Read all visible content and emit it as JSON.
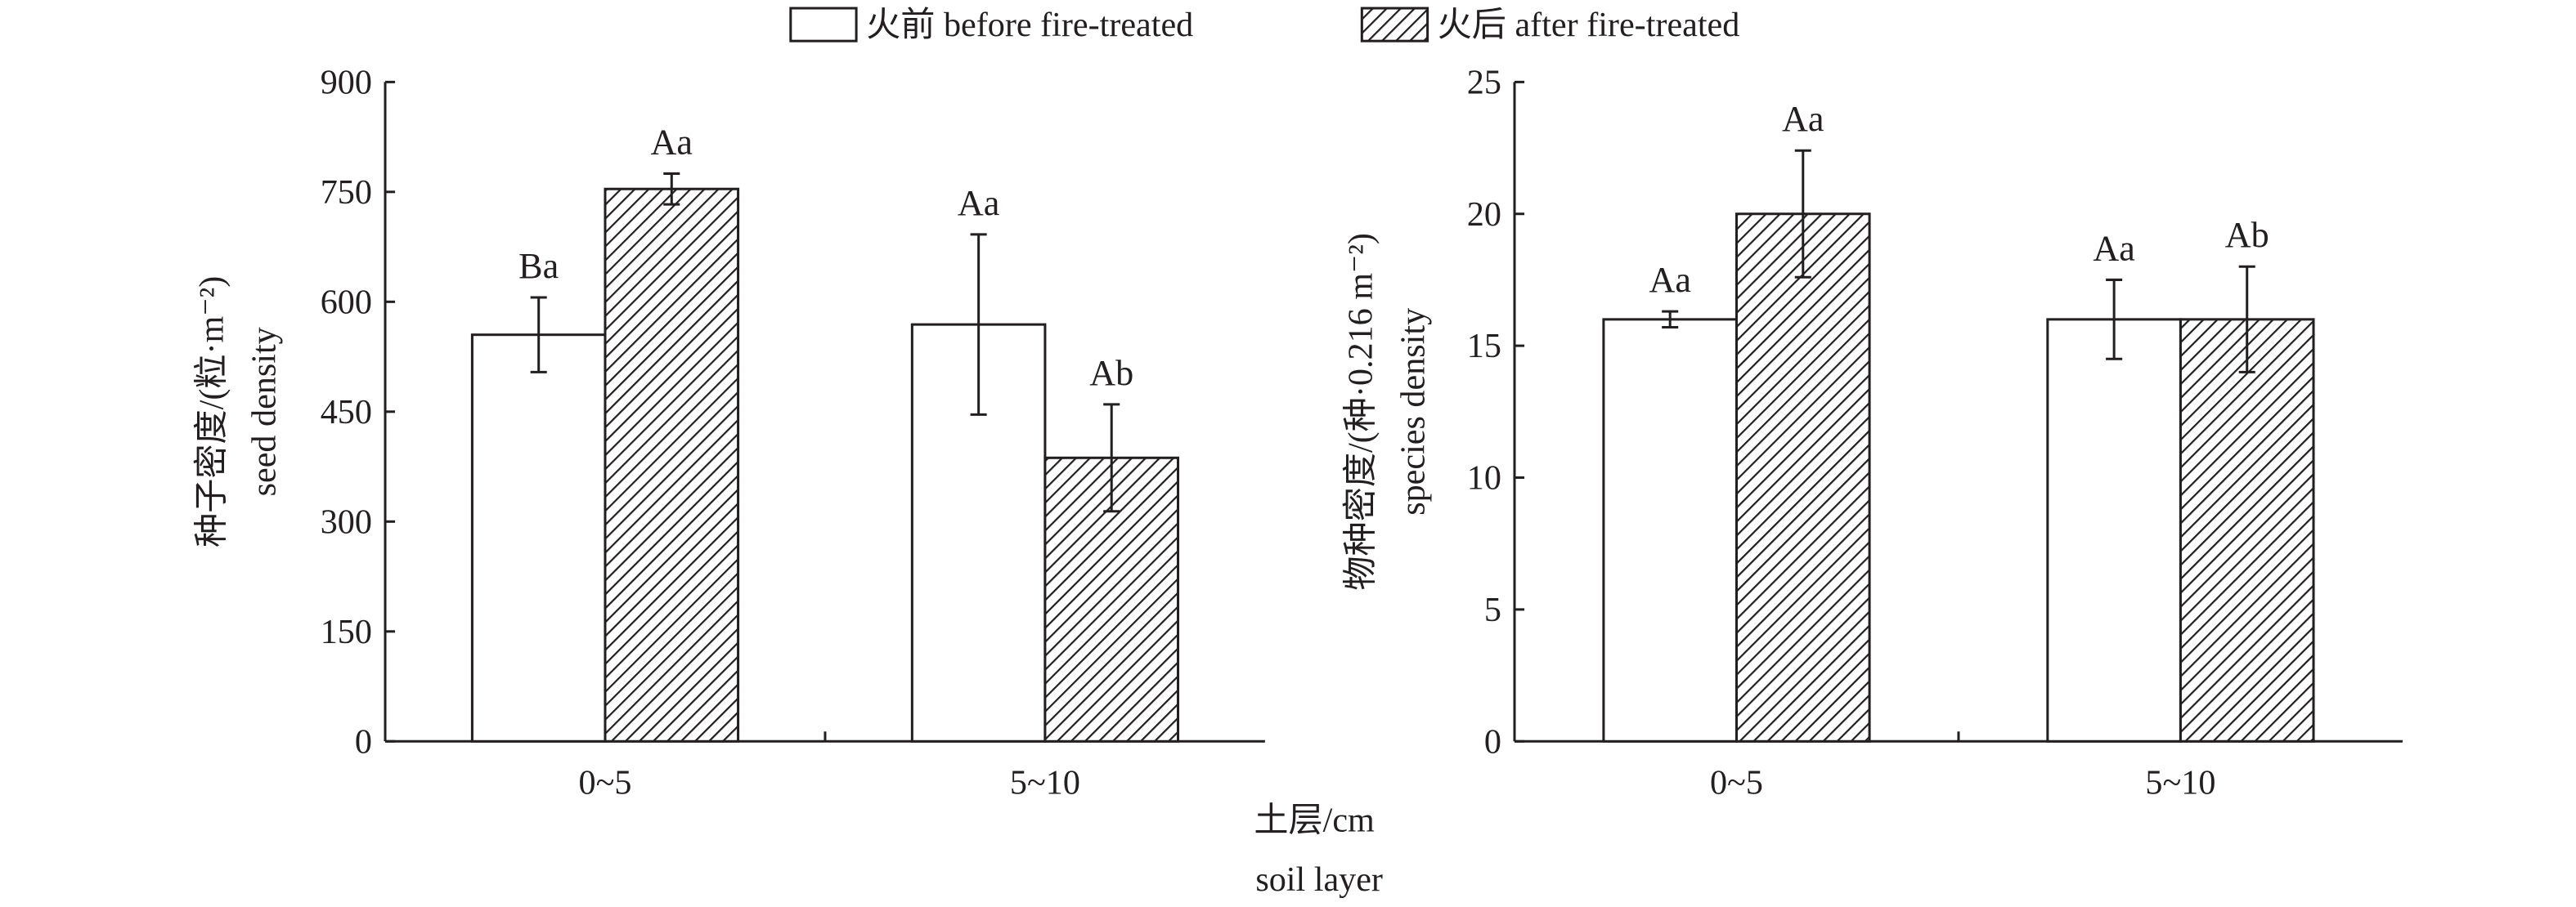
{
  "legend": {
    "before": "火前 before fire-treated",
    "after": "火后 after fire-treated"
  },
  "shared_xlabel": {
    "line1": "土层/cm",
    "line2": "soil layer"
  },
  "chart_data": [
    {
      "type": "bar",
      "categories": [
        "0~5",
        "5~10"
      ],
      "ylabel_line1": "种子密度/(粒·m⁻²)",
      "ylabel_line2": "seed density",
      "ylim": [
        0,
        900
      ],
      "yticks": [
        0,
        150,
        300,
        450,
        600,
        750,
        900
      ],
      "grid": false,
      "legend_position": "top-center",
      "series": [
        {
          "name": "火前 before fire-treated",
          "pattern": "open",
          "values": [
            555,
            569
          ],
          "errors": [
            51,
            123
          ],
          "labels": [
            "Ba",
            "Aa"
          ]
        },
        {
          "name": "火后 after fire-treated",
          "pattern": "hatched",
          "values": [
            754,
            387
          ],
          "errors": [
            21,
            73
          ],
          "labels": [
            "Aa",
            "Ab"
          ]
        }
      ]
    },
    {
      "type": "bar",
      "categories": [
        "0~5",
        "5~10"
      ],
      "ylabel_line1": "物种密度/(种·0.216 m⁻²)",
      "ylabel_line2": "species density",
      "ylim": [
        0,
        25
      ],
      "yticks": [
        0,
        5,
        10,
        15,
        20,
        25
      ],
      "grid": false,
      "series": [
        {
          "name": "火前 before fire-treated",
          "pattern": "open",
          "values": [
            16,
            16
          ],
          "errors": [
            0.3,
            1.5
          ],
          "labels": [
            "Aa",
            "Aa"
          ]
        },
        {
          "name": "火后 after fire-treated",
          "pattern": "hatched",
          "values": [
            20,
            16
          ],
          "errors": [
            2.4,
            2.0
          ],
          "labels": [
            "Aa",
            "Ab"
          ]
        }
      ]
    }
  ]
}
